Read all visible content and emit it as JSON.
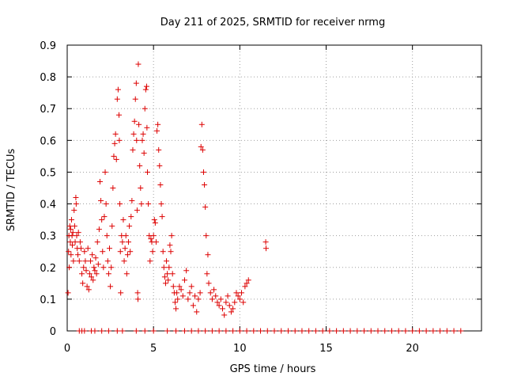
{
  "chart_data": {
    "type": "scatter",
    "title": "Day 211 of 2025, SRMTID for receiver nrmg",
    "xlabel": "GPS time / hours",
    "ylabel": "SRMTID / TECUs",
    "xlim": [
      0,
      24
    ],
    "ylim": [
      0,
      0.9
    ],
    "xticks": [
      0,
      5,
      10,
      15,
      20
    ],
    "xtick_labels": [
      "0",
      "5",
      "10",
      "15",
      "20"
    ],
    "yticks": [
      0,
      0.1,
      0.2,
      0.3,
      0.4,
      0.5,
      0.6,
      0.7,
      0.8,
      0.9
    ],
    "ytick_labels": [
      "0",
      "0.1",
      "0.2",
      "0.3",
      "0.4",
      "0.5",
      "0.6",
      "0.7",
      "0.8",
      "0.9"
    ],
    "grid": true,
    "marker": "+",
    "color": "#dd0000",
    "series": [
      {
        "name": "SRMTID",
        "points": [
          [
            0.05,
            0.12
          ],
          [
            0.08,
            0.25
          ],
          [
            0.1,
            0.3
          ],
          [
            0.12,
            0.2
          ],
          [
            0.15,
            0.33
          ],
          [
            0.18,
            0.28
          ],
          [
            0.2,
            0.32
          ],
          [
            0.22,
            0.24
          ],
          [
            0.25,
            0.35
          ],
          [
            0.28,
            0.3
          ],
          [
            0.3,
            0.27
          ],
          [
            0.33,
            0.31
          ],
          [
            0.36,
            0.22
          ],
          [
            0.4,
            0.38
          ],
          [
            0.43,
            0.33
          ],
          [
            0.46,
            0.28
          ],
          [
            0.5,
            0.42
          ],
          [
            0.52,
            0.4
          ],
          [
            0.55,
            0.3
          ],
          [
            0.58,
            0.26
          ],
          [
            0.62,
            0.24
          ],
          [
            0.65,
            0.31
          ],
          [
            0.7,
            0.22
          ],
          [
            0.75,
            0.28
          ],
          [
            0.8,
            0.26
          ],
          [
            0.85,
            0.18
          ],
          [
            0.9,
            0.15
          ],
          [
            0.95,
            0.2
          ],
          [
            1.0,
            0.25
          ],
          [
            1.05,
            0.22
          ],
          [
            1.1,
            0.19
          ],
          [
            1.15,
            0.14
          ],
          [
            1.2,
            0.26
          ],
          [
            1.25,
            0.13
          ],
          [
            1.3,
            0.18
          ],
          [
            1.35,
            0.22
          ],
          [
            1.4,
            0.17
          ],
          [
            1.45,
            0.24
          ],
          [
            1.5,
            0.16
          ],
          [
            1.55,
            0.2
          ],
          [
            1.6,
            0.19
          ],
          [
            1.65,
            0.23
          ],
          [
            1.7,
            0.18
          ],
          [
            1.75,
            0.28
          ],
          [
            1.8,
            0.21
          ],
          [
            1.85,
            0.32
          ],
          [
            1.9,
            0.47
          ],
          [
            1.95,
            0.41
          ],
          [
            2.0,
            0.35
          ],
          [
            2.05,
            0.25
          ],
          [
            2.1,
            0.2
          ],
          [
            2.15,
            0.36
          ],
          [
            2.2,
            0.5
          ],
          [
            2.25,
            0.4
          ],
          [
            2.3,
            0.3
          ],
          [
            2.35,
            0.22
          ],
          [
            2.4,
            0.18
          ],
          [
            2.45,
            0.26
          ],
          [
            2.5,
            0.14
          ],
          [
            2.55,
            0.2
          ],
          [
            2.6,
            0.33
          ],
          [
            2.65,
            0.45
          ],
          [
            2.7,
            0.55
          ],
          [
            2.75,
            0.59
          ],
          [
            2.8,
            0.62
          ],
          [
            2.85,
            0.54
          ],
          [
            2.9,
            0.73
          ],
          [
            2.95,
            0.76
          ],
          [
            3.0,
            0.68
          ],
          [
            3.02,
            0.6
          ],
          [
            3.05,
            0.4
          ],
          [
            3.08,
            0.25
          ],
          [
            3.1,
            0.12
          ],
          [
            3.15,
            0.3
          ],
          [
            3.2,
            0.28
          ],
          [
            3.25,
            0.35
          ],
          [
            3.3,
            0.22
          ],
          [
            3.35,
            0.26
          ],
          [
            3.4,
            0.3
          ],
          [
            3.45,
            0.18
          ],
          [
            3.5,
            0.24
          ],
          [
            3.55,
            0.28
          ],
          [
            3.6,
            0.33
          ],
          [
            3.65,
            0.25
          ],
          [
            3.7,
            0.36
          ],
          [
            3.75,
            0.41
          ],
          [
            3.8,
            0.57
          ],
          [
            3.85,
            0.62
          ],
          [
            3.9,
            0.66
          ],
          [
            3.95,
            0.73
          ],
          [
            4.0,
            0.78
          ],
          [
            4.02,
            0.6
          ],
          [
            4.05,
            0.38
          ],
          [
            4.08,
            0.12
          ],
          [
            4.1,
            0.1
          ],
          [
            4.12,
            0.84
          ],
          [
            4.15,
            0.65
          ],
          [
            4.2,
            0.52
          ],
          [
            4.25,
            0.45
          ],
          [
            4.3,
            0.4
          ],
          [
            4.35,
            0.6
          ],
          [
            4.4,
            0.62
          ],
          [
            4.45,
            0.56
          ],
          [
            4.5,
            0.7
          ],
          [
            4.55,
            0.76
          ],
          [
            4.6,
            0.77
          ],
          [
            4.62,
            0.64
          ],
          [
            4.65,
            0.5
          ],
          [
            4.7,
            0.4
          ],
          [
            4.75,
            0.3
          ],
          [
            4.8,
            0.22
          ],
          [
            4.85,
            0.29
          ],
          [
            4.9,
            0.28
          ],
          [
            4.95,
            0.25
          ],
          [
            5.0,
            0.3
          ],
          [
            5.05,
            0.35
          ],
          [
            5.1,
            0.34
          ],
          [
            5.15,
            0.28
          ],
          [
            5.2,
            0.63
          ],
          [
            5.25,
            0.65
          ],
          [
            5.3,
            0.57
          ],
          [
            5.35,
            0.52
          ],
          [
            5.4,
            0.46
          ],
          [
            5.45,
            0.4
          ],
          [
            5.5,
            0.36
          ],
          [
            5.55,
            0.25
          ],
          [
            5.6,
            0.2
          ],
          [
            5.65,
            0.17
          ],
          [
            5.7,
            0.15
          ],
          [
            5.75,
            0.22
          ],
          [
            5.8,
            0.18
          ],
          [
            5.85,
            0.16
          ],
          [
            5.9,
            0.2
          ],
          [
            5.95,
            0.27
          ],
          [
            6.0,
            0.25
          ],
          [
            6.05,
            0.3
          ],
          [
            6.1,
            0.18
          ],
          [
            6.15,
            0.14
          ],
          [
            6.2,
            0.12
          ],
          [
            6.25,
            0.09
          ],
          [
            6.3,
            0.07
          ],
          [
            6.35,
            0.12
          ],
          [
            6.4,
            0.1
          ],
          [
            6.5,
            0.14
          ],
          [
            6.6,
            0.13
          ],
          [
            6.7,
            0.11
          ],
          [
            6.8,
            0.16
          ],
          [
            6.9,
            0.19
          ],
          [
            7.0,
            0.1
          ],
          [
            7.1,
            0.12
          ],
          [
            7.2,
            0.14
          ],
          [
            7.3,
            0.08
          ],
          [
            7.4,
            0.11
          ],
          [
            7.5,
            0.06
          ],
          [
            7.6,
            0.1
          ],
          [
            7.7,
            0.12
          ],
          [
            7.75,
            0.58
          ],
          [
            7.8,
            0.65
          ],
          [
            7.85,
            0.57
          ],
          [
            7.9,
            0.5
          ],
          [
            7.95,
            0.46
          ],
          [
            8.0,
            0.39
          ],
          [
            8.05,
            0.3
          ],
          [
            8.1,
            0.18
          ],
          [
            8.15,
            0.24
          ],
          [
            8.2,
            0.15
          ],
          [
            8.3,
            0.12
          ],
          [
            8.4,
            0.1
          ],
          [
            8.5,
            0.13
          ],
          [
            8.6,
            0.11
          ],
          [
            8.7,
            0.09
          ],
          [
            8.8,
            0.08
          ],
          [
            8.9,
            0.1
          ],
          [
            9.0,
            0.07
          ],
          [
            9.1,
            0.05
          ],
          [
            9.2,
            0.09
          ],
          [
            9.3,
            0.11
          ],
          [
            9.4,
            0.08
          ],
          [
            9.5,
            0.06
          ],
          [
            9.6,
            0.07
          ],
          [
            9.7,
            0.09
          ],
          [
            9.8,
            0.12
          ],
          [
            9.9,
            0.11
          ],
          [
            10.0,
            0.1
          ],
          [
            10.1,
            0.12
          ],
          [
            10.2,
            0.09
          ],
          [
            10.3,
            0.14
          ],
          [
            10.4,
            0.15
          ],
          [
            10.5,
            0.16
          ],
          [
            11.5,
            0.28
          ],
          [
            11.52,
            0.26
          ],
          [
            0.7,
            0
          ],
          [
            0.85,
            0
          ],
          [
            1.0,
            0
          ],
          [
            1.4,
            0
          ],
          [
            1.6,
            0
          ],
          [
            2.0,
            0
          ],
          [
            2.4,
            0
          ],
          [
            2.9,
            0
          ],
          [
            3.2,
            0
          ],
          [
            4.0,
            0
          ],
          [
            4.5,
            0
          ],
          [
            5.0,
            0
          ],
          [
            5.8,
            0
          ],
          [
            6.3,
            0
          ],
          [
            6.8,
            0
          ],
          [
            7.2,
            0
          ],
          [
            7.6,
            0
          ],
          [
            8.0,
            0
          ],
          [
            8.4,
            0
          ],
          [
            8.8,
            0
          ],
          [
            9.2,
            0
          ],
          [
            9.6,
            0
          ],
          [
            10.0,
            0
          ],
          [
            10.4,
            0
          ],
          [
            10.8,
            0
          ],
          [
            11.2,
            0
          ],
          [
            11.6,
            0
          ],
          [
            12.0,
            0
          ],
          [
            12.4,
            0
          ],
          [
            12.8,
            0
          ],
          [
            13.2,
            0
          ],
          [
            13.6,
            0
          ],
          [
            14.0,
            0
          ],
          [
            14.4,
            0
          ],
          [
            14.8,
            0
          ],
          [
            15.2,
            0
          ],
          [
            15.6,
            0
          ],
          [
            16.0,
            0
          ],
          [
            16.4,
            0
          ],
          [
            16.8,
            0
          ],
          [
            17.2,
            0
          ],
          [
            17.6,
            0
          ],
          [
            18.0,
            0
          ],
          [
            18.4,
            0
          ],
          [
            18.8,
            0
          ],
          [
            19.2,
            0
          ],
          [
            19.6,
            0
          ],
          [
            20.0,
            0
          ],
          [
            20.4,
            0
          ],
          [
            20.8,
            0
          ],
          [
            21.2,
            0
          ],
          [
            21.6,
            0
          ],
          [
            22.0,
            0
          ],
          [
            22.4,
            0
          ],
          [
            22.8,
            0
          ]
        ]
      }
    ]
  }
}
